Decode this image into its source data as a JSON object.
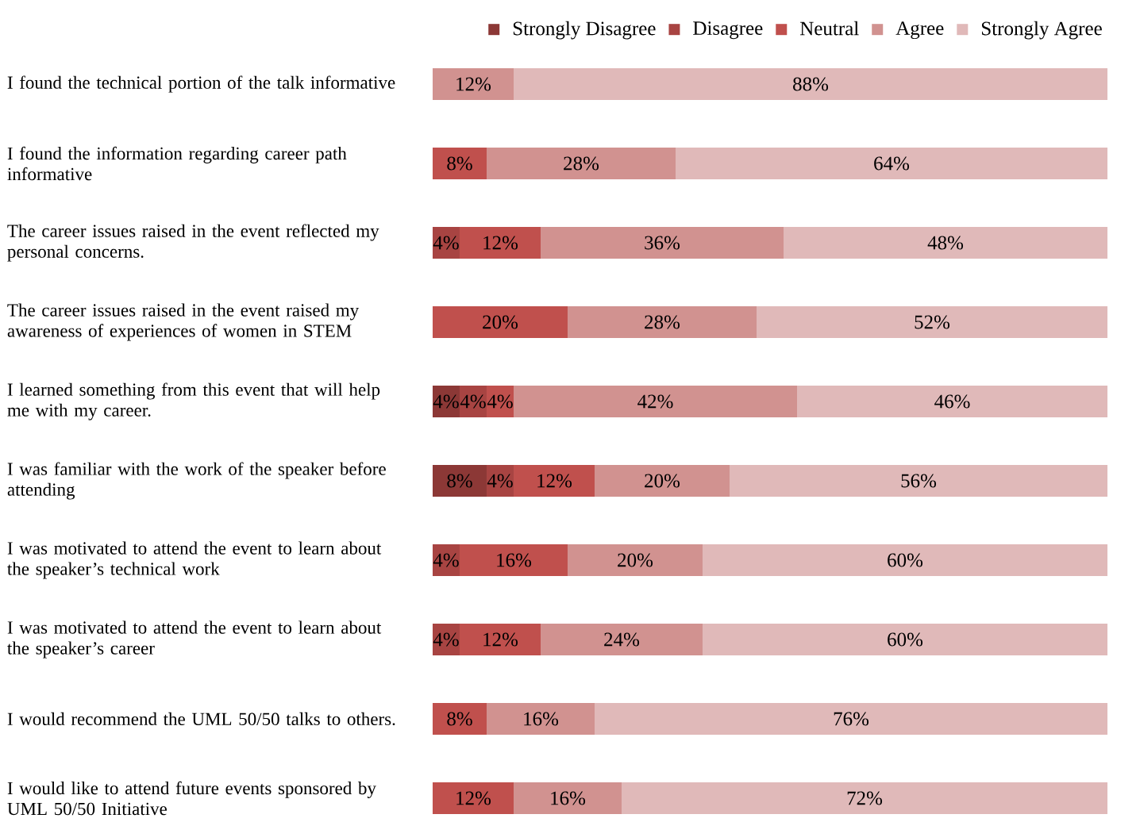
{
  "chart_data": {
    "type": "bar",
    "orientation": "horizontal",
    "stacked": true,
    "legend": "top",
    "tick_labels": "y",
    "xlim": [
      0,
      100
    ],
    "categories": [
      "I found the technical portion of the talk informative",
      "I found the information regarding career path informative",
      "The career issues raised in the event reflected my personal concerns.",
      "The career issues raised in the event raised my awareness of experiences of women in STEM",
      "I learned something from this event that will help me with my career.",
      "I was familiar with the work of the speaker before attending",
      "I was motivated to attend the event to learn about the speaker’s technical work",
      "I was motivated to attend the event to learn about the speaker’s career",
      "I would recommend the UML 50/50 talks to others.",
      "I would like to attend future events sponsored by UML 50/50 Initiative"
    ],
    "series": [
      {
        "name": "Strongly Disagree",
        "color": "#8c3836",
        "values": [
          0,
          0,
          0,
          0,
          4,
          8,
          0,
          0,
          0,
          0
        ],
        "value_labels": [
          null,
          null,
          null,
          null,
          "4%",
          "8%",
          null,
          null,
          null,
          null
        ]
      },
      {
        "name": "Disagree",
        "color": "#a84442",
        "values": [
          0,
          0,
          4,
          0,
          4,
          4,
          4,
          4,
          0,
          0
        ],
        "value_labels": [
          null,
          null,
          "4%",
          null,
          "4%",
          "4%",
          "4%",
          "4%",
          null,
          null
        ]
      },
      {
        "name": "Neutral",
        "color": "#c0504d",
        "values": [
          0,
          8,
          12,
          20,
          4,
          12,
          16,
          12,
          8,
          12
        ],
        "value_labels": [
          null,
          "8%",
          "12%",
          "20%",
          "4%",
          "12%",
          "16%",
          "12%",
          "8%",
          "12%"
        ]
      },
      {
        "name": "Agree",
        "color": "#d19290",
        "values": [
          12,
          28,
          36,
          28,
          42,
          20,
          20,
          24,
          16,
          16
        ],
        "value_labels": [
          "12%",
          "28%",
          "36%",
          "28%",
          "42%",
          "20%",
          "20%",
          "24%",
          "16%",
          "16%"
        ]
      },
      {
        "name": "Strongly Agree",
        "color": "#e0b9b9",
        "values": [
          88,
          64,
          48,
          52,
          46,
          56,
          60,
          60,
          76,
          72
        ],
        "value_labels": [
          "88%",
          "64%",
          "48%",
          "52%",
          "46%",
          "56%",
          "60%",
          "60%",
          "76%",
          "72%"
        ]
      }
    ]
  }
}
